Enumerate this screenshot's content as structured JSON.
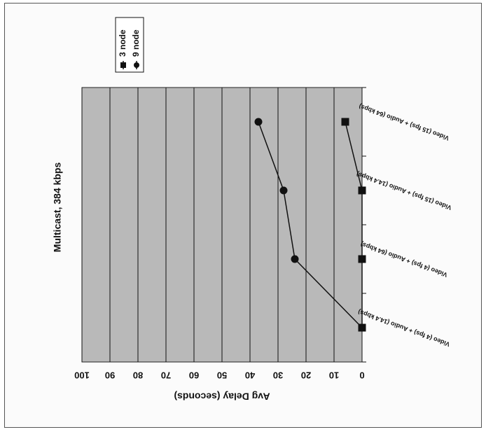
{
  "chart_data": {
    "type": "line",
    "title": "Multicast, 384 kbps",
    "ylabel": "Avg Delay (seconds)",
    "xlabel": "",
    "ylim": [
      0,
      100
    ],
    "yticks": [
      "0",
      "10",
      "20",
      "30",
      "40",
      "50",
      "60",
      "70",
      "80",
      "90",
      "100"
    ],
    "categories": [
      "Video (4 fps) + Audio (14.4 kbps)",
      "Video (4 fps) + Audio (64 kbps)",
      "Video (15 fps) + Audio (14.4 kbps)",
      "Video (15 fps) + Audio (64 kbps)"
    ],
    "series": [
      {
        "name": "3 node",
        "marker": "square",
        "values": [
          0,
          0,
          0,
          6
        ]
      },
      {
        "name": "9 node",
        "marker": "circle",
        "values": [
          0,
          24,
          28,
          37
        ]
      }
    ],
    "grid": true,
    "legend_position": "top-right",
    "orientation": "rotated-180",
    "colors": {
      "plot_background": "#b9b9b9",
      "line": "#111111",
      "marker": "#111111"
    }
  }
}
